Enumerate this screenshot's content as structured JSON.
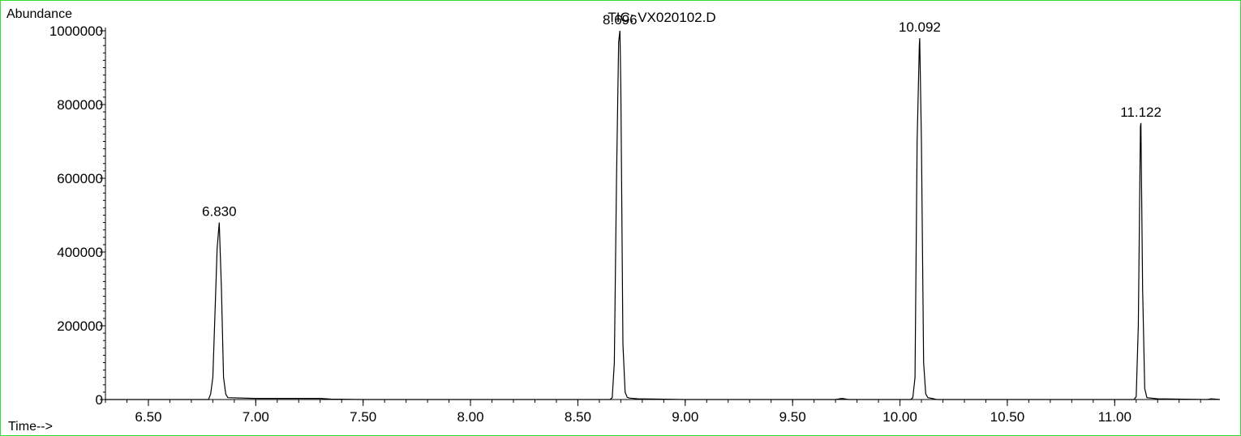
{
  "chart_data": {
    "type": "line",
    "title": "TIC: VX020102.D",
    "ylabel": "Abundance",
    "xlabel": "Time-->",
    "xlim": [
      6.3,
      11.49
    ],
    "ylim": [
      0,
      1000000
    ],
    "xticks": [
      6.5,
      7.0,
      7.5,
      8.0,
      8.5,
      9.0,
      9.5,
      10.0,
      10.5,
      11.0
    ],
    "xtick_labels": [
      "6.50",
      "7.00",
      "7.50",
      "8.00",
      "8.50",
      "9.00",
      "9.50",
      "10.00",
      "10.50",
      "11.00"
    ],
    "yticks": [
      0,
      200000,
      400000,
      600000,
      800000,
      1000000
    ],
    "ytick_labels": [
      "0",
      "200000",
      "400000",
      "600000",
      "800000",
      "1000000"
    ],
    "grid": false,
    "series": [
      {
        "x": [
          6.3,
          6.78,
          6.79,
          6.8,
          6.81,
          6.82,
          6.83,
          6.84,
          6.85,
          6.86,
          6.87,
          7.0,
          7.3,
          7.35,
          7.5,
          8.0,
          8.65,
          8.66,
          8.67,
          8.68,
          8.69,
          8.696,
          8.7,
          8.71,
          8.72,
          8.73,
          8.74,
          8.78,
          9.0,
          9.7,
          9.73,
          9.76,
          10.0,
          10.05,
          10.06,
          10.07,
          10.08,
          10.09,
          10.092,
          10.1,
          10.11,
          10.12,
          10.13,
          10.15,
          10.17,
          10.5,
          11.0,
          11.09,
          11.1,
          11.11,
          11.12,
          11.122,
          11.13,
          11.14,
          11.15,
          11.2,
          11.43,
          11.45,
          11.49
        ],
        "y": [
          0,
          0,
          15000,
          60000,
          230000,
          410000,
          480000,
          300000,
          60000,
          15000,
          5000,
          3000,
          3000,
          1000,
          0,
          0,
          0,
          5000,
          100000,
          600000,
          970000,
          1000000,
          850000,
          150000,
          20000,
          6000,
          4000,
          2000,
          0,
          0,
          3000,
          0,
          0,
          0,
          5000,
          60000,
          700000,
          960000,
          980000,
          700000,
          100000,
          15000,
          5000,
          3000,
          0,
          0,
          0,
          0,
          8000,
          200000,
          740000,
          750000,
          300000,
          30000,
          5000,
          2000,
          0,
          2000,
          0
        ]
      }
    ],
    "peak_labels": [
      {
        "x": 6.83,
        "y": 480000,
        "text": "6.830"
      },
      {
        "x": 8.696,
        "y": 1000000,
        "text": "8.696"
      },
      {
        "x": 10.092,
        "y": 980000,
        "text": "10.092"
      },
      {
        "x": 11.122,
        "y": 750000,
        "text": "11.122"
      }
    ]
  }
}
